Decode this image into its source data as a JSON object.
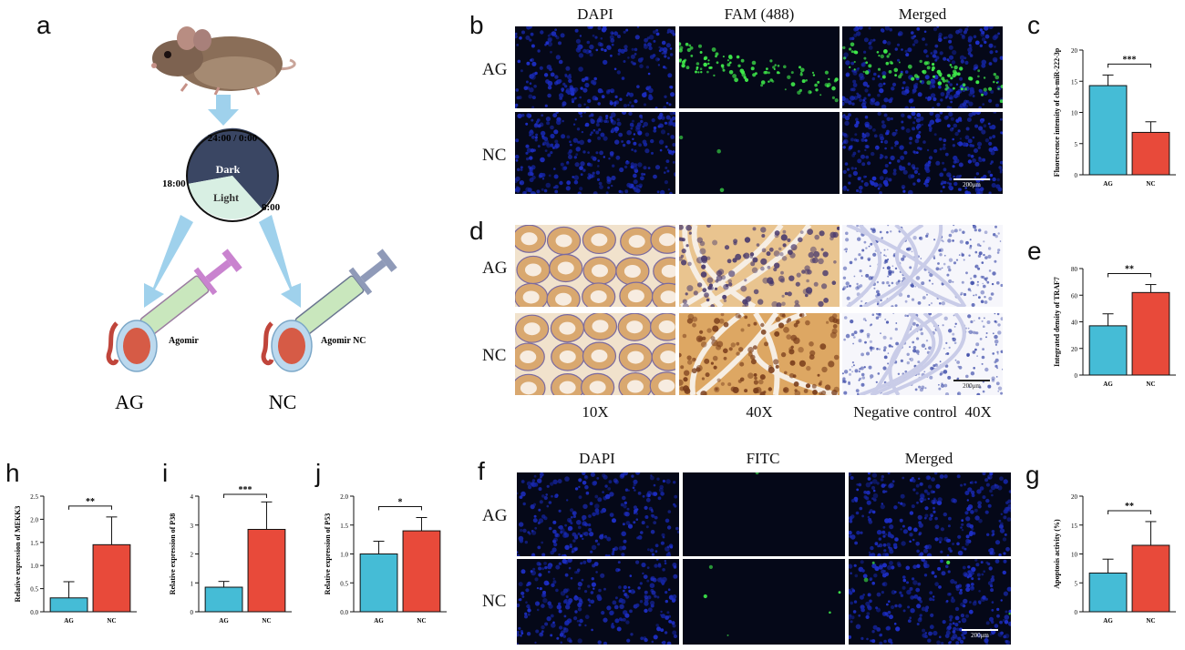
{
  "panels": {
    "a": {
      "label": "a",
      "clock": {
        "top": "24:00 / 0:00",
        "left": "18:00",
        "right": "8:00",
        "dark": "Dark",
        "light": "Light"
      },
      "syringe_left": "Agomir",
      "syringe_right": "Agomir NC",
      "group_left": "AG",
      "group_right": "NC",
      "colors": {
        "dark": "#3a4663",
        "light": "#d8efe3",
        "arrow": "#9fd1ec",
        "syringe_left": "#c983cf",
        "syringe_right": "#8f9ab8",
        "syringe_body": "#c9e7bd"
      }
    },
    "b": {
      "label": "b",
      "columns": [
        "DAPI",
        "FAM (488)",
        "Merged"
      ],
      "rows": [
        "AG",
        "NC"
      ],
      "scalebar": "200μm"
    },
    "d": {
      "label": "d",
      "rows": [
        "AG",
        "NC"
      ],
      "bottom_labels": [
        "10X",
        "40X",
        "Negative control  40X"
      ],
      "scalebar": "200μm"
    },
    "f": {
      "label": "f",
      "columns": [
        "DAPI",
        "FITC",
        "Merged"
      ],
      "rows": [
        "AG",
        "NC"
      ],
      "scalebar": "200μm"
    }
  },
  "chart_data": [
    {
      "id": "c",
      "label": "c",
      "type": "bar",
      "categories": [
        "AG",
        "NC"
      ],
      "values": [
        14.3,
        6.8
      ],
      "errors": [
        1.7,
        1.7
      ],
      "ylabel": "Fluorescence intensity of cba-miR-222-3p",
      "ylim": [
        0,
        20
      ],
      "yticks": [
        "0",
        "5",
        "10",
        "15",
        "20"
      ],
      "significance": "***",
      "colors": [
        "#45bcd6",
        "#e84a3a"
      ]
    },
    {
      "id": "e",
      "label": "e",
      "type": "bar",
      "categories": [
        "AG",
        "NC"
      ],
      "values": [
        37,
        62
      ],
      "errors": [
        9,
        6
      ],
      "ylabel": "Integrated density of TRAF7",
      "ylim": [
        0,
        80
      ],
      "yticks": [
        "0",
        "20",
        "40",
        "60",
        "80"
      ],
      "significance": "**",
      "colors": [
        "#45bcd6",
        "#e84a3a"
      ]
    },
    {
      "id": "h",
      "label": "h",
      "type": "bar",
      "categories": [
        "AG",
        "NC"
      ],
      "values": [
        0.3,
        1.45
      ],
      "errors": [
        0.35,
        0.6
      ],
      "ylabel": "Relative expression of MEKK3",
      "ylim": [
        0,
        2.5
      ],
      "yticks": [
        "0.0",
        "0.5",
        "1.0",
        "1.5",
        "2.0",
        "2.5"
      ],
      "significance": "**",
      "colors": [
        "#45bcd6",
        "#e84a3a"
      ]
    },
    {
      "id": "i",
      "label": "i",
      "type": "bar",
      "categories": [
        "AG",
        "NC"
      ],
      "values": [
        0.85,
        2.85
      ],
      "errors": [
        0.2,
        0.95
      ],
      "ylabel": "Relative expression of P38",
      "ylim": [
        0,
        4
      ],
      "yticks": [
        "0",
        "1",
        "2",
        "3",
        "4"
      ],
      "significance": "***",
      "colors": [
        "#45bcd6",
        "#e84a3a"
      ]
    },
    {
      "id": "j",
      "label": "j",
      "type": "bar",
      "categories": [
        "AG",
        "NC"
      ],
      "values": [
        1.0,
        1.4
      ],
      "errors": [
        0.22,
        0.23
      ],
      "ylabel": "Relative expression of P53",
      "ylim": [
        0,
        2.0
      ],
      "yticks": [
        "0.0",
        "0.5",
        "1.0",
        "1.5",
        "2.0"
      ],
      "significance": "*",
      "colors": [
        "#45bcd6",
        "#e84a3a"
      ]
    },
    {
      "id": "g",
      "label": "g",
      "type": "bar",
      "categories": [
        "AG",
        "NC"
      ],
      "values": [
        6.7,
        11.5
      ],
      "errors": [
        2.4,
        4.1
      ],
      "ylabel": "Apoptosis activity (%)",
      "ylim": [
        0,
        20
      ],
      "yticks": [
        "0",
        "5",
        "10",
        "15",
        "20"
      ],
      "significance": "**",
      "colors": [
        "#45bcd6",
        "#e84a3a"
      ]
    }
  ]
}
